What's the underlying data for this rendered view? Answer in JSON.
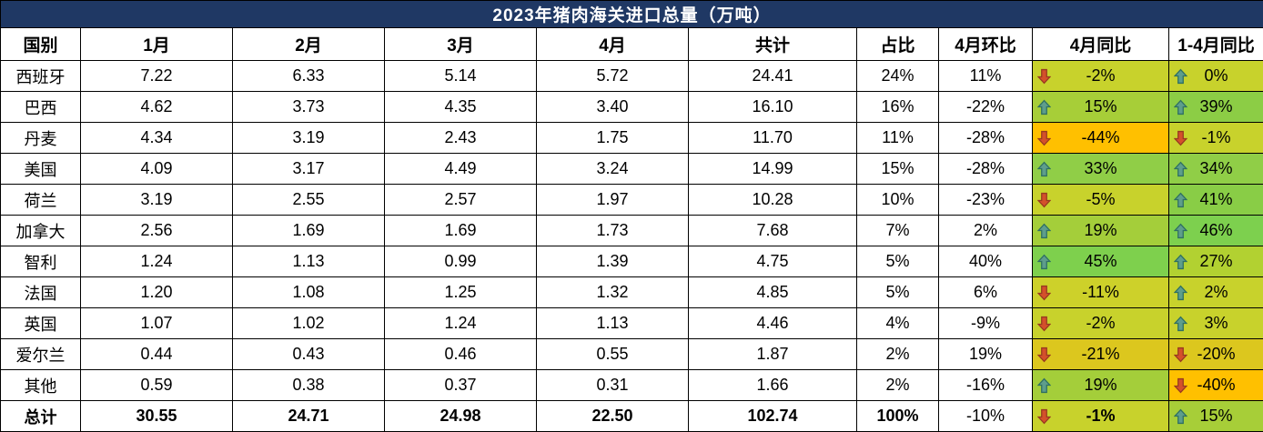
{
  "title": "2023年猪肉海关进口总量（万吨）",
  "colors": {
    "title_bg": "#1F3864",
    "title_text": "#FFFFFF",
    "border": "#000000",
    "up_arrow_fill": "#5E9D8C",
    "up_arrow_stroke": "#2F6F62",
    "down_arrow_fill": "#D4502B",
    "down_arrow_stroke": "#973A20",
    "scale_orange": "#FFC000",
    "scale_gold": "#DCC71E",
    "scale_olive": "#C8D22C",
    "scale_green": "#7DD04E"
  },
  "chart_data": {
    "type": "table",
    "title": "2023年猪肉海关进口总量（万吨）",
    "columns": [
      "国别",
      "1月",
      "2月",
      "3月",
      "4月",
      "共计",
      "占比",
      "4月环比",
      "4月同比",
      "1-4月同比"
    ],
    "rows": [
      {
        "country": "西班牙",
        "m1": "7.22",
        "m2": "6.33",
        "m3": "5.14",
        "m4": "5.72",
        "total": "24.41",
        "share": "24%",
        "mom": "11%",
        "apr_yoy": {
          "dir": "down",
          "value": "-2%",
          "bg": "#C8D22C"
        },
        "ytd_yoy": {
          "dir": "up",
          "value": "0%",
          "bg": "#C8D22C"
        },
        "is_total": false
      },
      {
        "country": "巴西",
        "m1": "4.62",
        "m2": "3.73",
        "m3": "4.35",
        "m4": "3.40",
        "total": "16.10",
        "share": "16%",
        "mom": "-22%",
        "apr_yoy": {
          "dir": "up",
          "value": "15%",
          "bg": "#A7CE38"
        },
        "ytd_yoy": {
          "dir": "up",
          "value": "39%",
          "bg": "#8CCD45"
        },
        "is_total": false
      },
      {
        "country": "丹麦",
        "m1": "4.34",
        "m2": "3.19",
        "m3": "2.43",
        "m4": "1.75",
        "total": "11.70",
        "share": "11%",
        "mom": "-28%",
        "apr_yoy": {
          "dir": "down",
          "value": "-44%",
          "bg": "#FFC000"
        },
        "ytd_yoy": {
          "dir": "down",
          "value": "-1%",
          "bg": "#C8D22C"
        },
        "is_total": false
      },
      {
        "country": "美国",
        "m1": "4.09",
        "m2": "3.17",
        "m3": "4.49",
        "m4": "3.24",
        "total": "14.99",
        "share": "15%",
        "mom": "-28%",
        "apr_yoy": {
          "dir": "up",
          "value": "33%",
          "bg": "#90CE47"
        },
        "ytd_yoy": {
          "dir": "up",
          "value": "34%",
          "bg": "#90CE47"
        },
        "is_total": false
      },
      {
        "country": "荷兰",
        "m1": "3.19",
        "m2": "2.55",
        "m3": "2.57",
        "m4": "1.97",
        "total": "10.28",
        "share": "10%",
        "mom": "-23%",
        "apr_yoy": {
          "dir": "down",
          "value": "-5%",
          "bg": "#C8D22C"
        },
        "ytd_yoy": {
          "dir": "up",
          "value": "41%",
          "bg": "#89CD46"
        },
        "is_total": false
      },
      {
        "country": "加拿大",
        "m1": "2.56",
        "m2": "1.69",
        "m3": "1.69",
        "m4": "1.73",
        "total": "7.68",
        "share": "7%",
        "mom": "2%",
        "apr_yoy": {
          "dir": "up",
          "value": "19%",
          "bg": "#A4CE3A"
        },
        "ytd_yoy": {
          "dir": "up",
          "value": "46%",
          "bg": "#7DD04E"
        },
        "is_total": false
      },
      {
        "country": "智利",
        "m1": "1.24",
        "m2": "1.13",
        "m3": "0.99",
        "m4": "1.39",
        "total": "4.75",
        "share": "5%",
        "mom": "40%",
        "apr_yoy": {
          "dir": "up",
          "value": "45%",
          "bg": "#7ED04D"
        },
        "ytd_yoy": {
          "dir": "up",
          "value": "27%",
          "bg": "#B2D131"
        },
        "is_total": false
      },
      {
        "country": "法国",
        "m1": "1.20",
        "m2": "1.08",
        "m3": "1.25",
        "m4": "1.32",
        "total": "4.85",
        "share": "5%",
        "mom": "6%",
        "apr_yoy": {
          "dir": "down",
          "value": "-11%",
          "bg": "#CDD12A"
        },
        "ytd_yoy": {
          "dir": "up",
          "value": "2%",
          "bg": "#C8D22C"
        },
        "is_total": false
      },
      {
        "country": "英国",
        "m1": "1.07",
        "m2": "1.02",
        "m3": "1.24",
        "m4": "1.13",
        "total": "4.46",
        "share": "4%",
        "mom": "-9%",
        "apr_yoy": {
          "dir": "down",
          "value": "-2%",
          "bg": "#C8D22C"
        },
        "ytd_yoy": {
          "dir": "up",
          "value": "3%",
          "bg": "#C8D22C"
        },
        "is_total": false
      },
      {
        "country": "爱尔兰",
        "m1": "0.44",
        "m2": "0.43",
        "m3": "0.46",
        "m4": "0.55",
        "total": "1.87",
        "share": "2%",
        "mom": "19%",
        "apr_yoy": {
          "dir": "down",
          "value": "-21%",
          "bg": "#DCC71E"
        },
        "ytd_yoy": {
          "dir": "down",
          "value": "-20%",
          "bg": "#DCC71E"
        },
        "is_total": false
      },
      {
        "country": "其他",
        "m1": "0.59",
        "m2": "0.38",
        "m3": "0.37",
        "m4": "0.31",
        "total": "1.66",
        "share": "2%",
        "mom": "-16%",
        "apr_yoy": {
          "dir": "up",
          "value": "19%",
          "bg": "#A4CE3A"
        },
        "ytd_yoy": {
          "dir": "down",
          "value": "-40%",
          "bg": "#FFC000"
        },
        "is_total": false
      },
      {
        "country": "总计",
        "m1": "30.55",
        "m2": "24.71",
        "m3": "24.98",
        "m4": "22.50",
        "total": "102.74",
        "share": "100%",
        "mom": "-10%",
        "apr_yoy": {
          "dir": "down",
          "value": "-1%",
          "bg": "#C8D22C"
        },
        "ytd_yoy": {
          "dir": "up",
          "value": "15%",
          "bg": "#A7CE38"
        },
        "is_total": true
      }
    ]
  }
}
